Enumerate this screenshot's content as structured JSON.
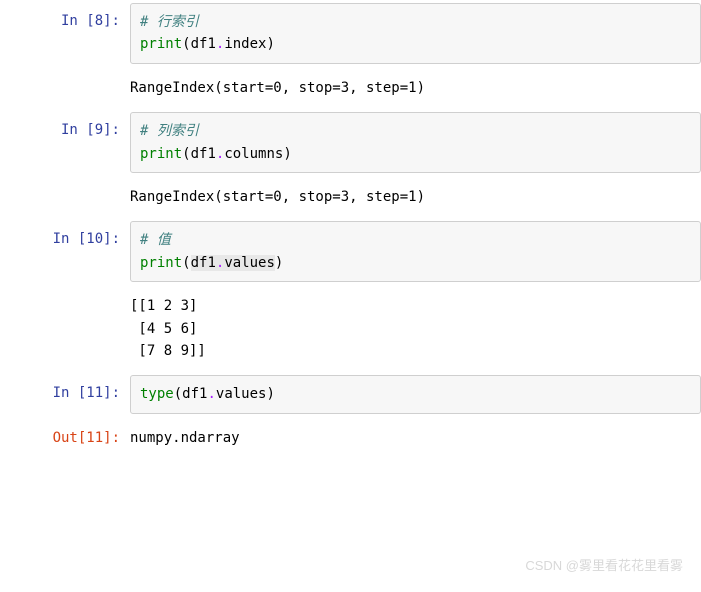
{
  "cells": [
    {
      "prompt_in": "In  [8]:",
      "code": {
        "line1_comment": "# 行索引",
        "line2_fn": "print",
        "line2_open": "(",
        "line2_obj": "df1",
        "line2_dot": ".",
        "line2_attr": "index",
        "line2_close": ")"
      },
      "output": "RangeIndex(start=0, stop=3, step=1)"
    },
    {
      "prompt_in": "In  [9]:",
      "code": {
        "line1_comment": "# 列索引",
        "line2_fn": "print",
        "line2_open": "(",
        "line2_obj": "df1",
        "line2_dot": ".",
        "line2_attr": "columns",
        "line2_close": ")"
      },
      "output": "RangeIndex(start=0, stop=3, step=1)"
    },
    {
      "prompt_in": "In [10]:",
      "code": {
        "line1_comment": "# 值",
        "line2_fn": "print",
        "line2_open": "(",
        "line2_obj": "df1",
        "line2_dot": ".",
        "line2_attr": "values",
        "line2_close": ")"
      },
      "output": "[[1 2 3]\n [4 5 6]\n [7 8 9]]"
    },
    {
      "prompt_in": "In [11]:",
      "code": {
        "line_fn": "type",
        "line_open": "(",
        "line_obj": "df1",
        "line_dot": ".",
        "line_attr": "values",
        "line_close": ")"
      },
      "prompt_out": "Out[11]:",
      "result": "numpy.ndarray"
    }
  ],
  "watermark": "CSDN @雾里看花花里看雾",
  "colors": {
    "prompt_in": "#303F9F",
    "prompt_out": "#D84315",
    "comment": "#408080",
    "builtin": "#008000",
    "operator": "#AA22FF",
    "input_bg": "#f7f7f7",
    "input_border": "#cfcfcf",
    "highlight_bg": "#e8e8e8",
    "page_bg": "#ffffff",
    "text": "#000000",
    "watermark": "#d8d8d8"
  },
  "font": {
    "family": "Menlo, Consolas, DejaVu Sans Mono, monospace",
    "size_pt": 14
  }
}
